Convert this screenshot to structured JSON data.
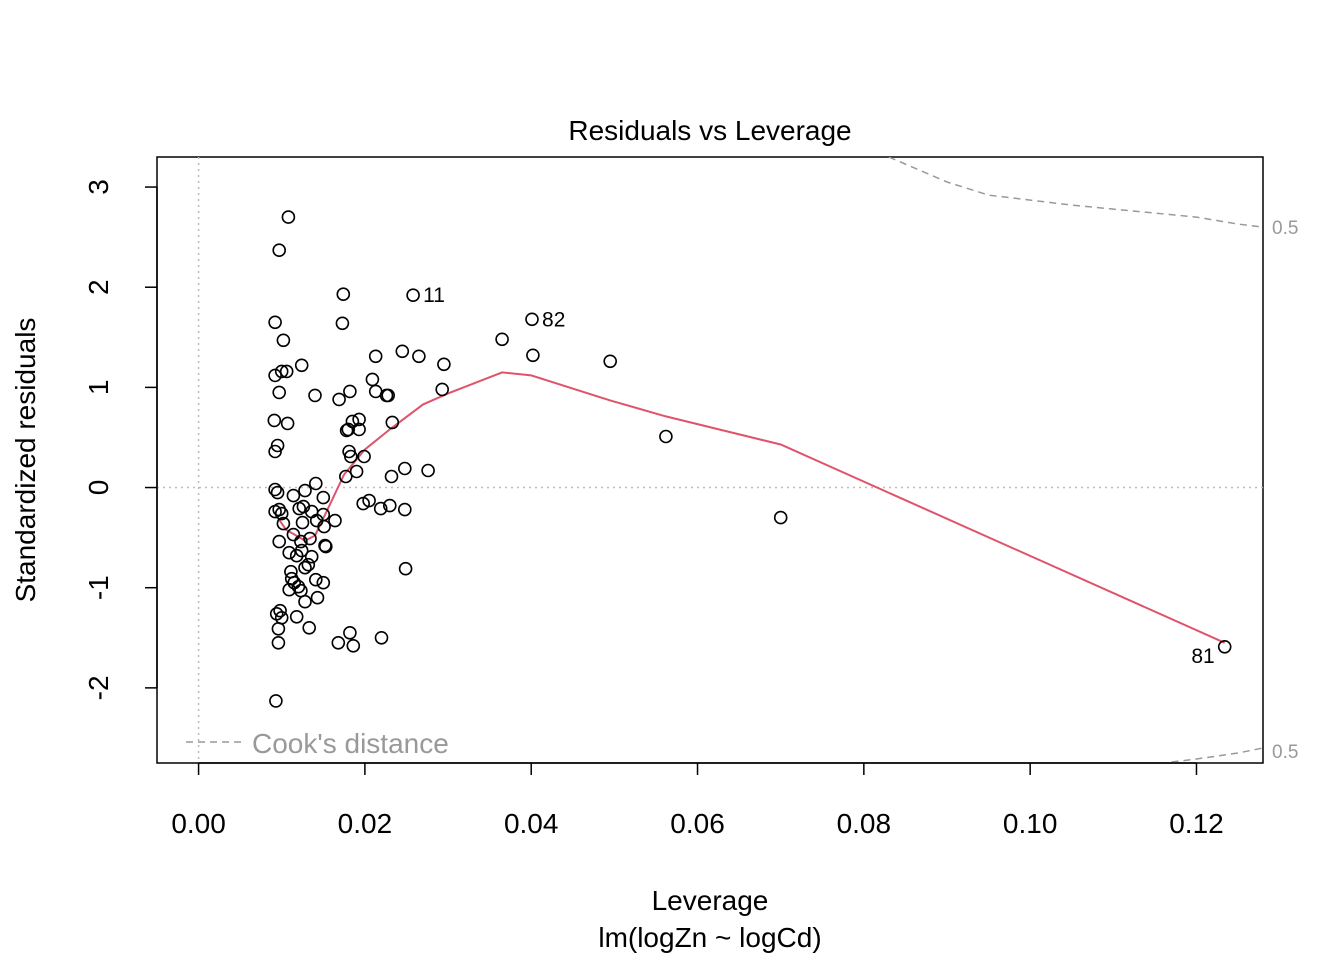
{
  "chart_data": {
    "type": "scatter",
    "title": "Residuals vs Leverage",
    "xlabel": "Leverage",
    "subtitle": "lm(logZn ~ logCd)",
    "ylabel": "Standardized residuals",
    "xlim": [
      -0.005,
      0.128
    ],
    "ylim": [
      -2.75,
      3.3
    ],
    "x_ticks": [
      0.0,
      0.02,
      0.04,
      0.06,
      0.08,
      0.1,
      0.12
    ],
    "x_tick_labels": [
      "0.00",
      "0.02",
      "0.04",
      "0.06",
      "0.08",
      "0.10",
      "0.12"
    ],
    "y_ticks": [
      -2,
      -1,
      0,
      1,
      2,
      3
    ],
    "y_tick_labels": [
      "-2",
      "-1",
      "0",
      "1",
      "2",
      "3"
    ],
    "reference_lines": {
      "h": 0,
      "v": 0
    },
    "points": [
      [
        0.0108,
        2.7
      ],
      [
        0.0097,
        2.37
      ],
      [
        0.0174,
        1.93
      ],
      [
        0.0258,
        1.92
      ],
      [
        0.0401,
        1.68
      ],
      [
        0.0092,
        1.65
      ],
      [
        0.0173,
        1.64
      ],
      [
        0.0102,
        1.47
      ],
      [
        0.0365,
        1.48
      ],
      [
        0.0245,
        1.36
      ],
      [
        0.0213,
        1.31
      ],
      [
        0.0265,
        1.31
      ],
      [
        0.0402,
        1.32
      ],
      [
        0.0495,
        1.26
      ],
      [
        0.0124,
        1.22
      ],
      [
        0.0295,
        1.23
      ],
      [
        0.0106,
        1.16
      ],
      [
        0.01,
        1.16
      ],
      [
        0.0092,
        1.12
      ],
      [
        0.0209,
        1.08
      ],
      [
        0.0097,
        0.95
      ],
      [
        0.014,
        0.92
      ],
      [
        0.0182,
        0.96
      ],
      [
        0.0213,
        0.96
      ],
      [
        0.0226,
        0.92
      ],
      [
        0.0228,
        0.92
      ],
      [
        0.0293,
        0.98
      ],
      [
        0.0169,
        0.88
      ],
      [
        0.0091,
        0.67
      ],
      [
        0.0107,
        0.64
      ],
      [
        0.0185,
        0.66
      ],
      [
        0.0193,
        0.68
      ],
      [
        0.0233,
        0.65
      ],
      [
        0.0178,
        0.57
      ],
      [
        0.018,
        0.58
      ],
      [
        0.0193,
        0.58
      ],
      [
        0.0562,
        0.51
      ],
      [
        0.0095,
        0.42
      ],
      [
        0.0092,
        0.36
      ],
      [
        0.0181,
        0.36
      ],
      [
        0.0183,
        0.31
      ],
      [
        0.0199,
        0.31
      ],
      [
        0.0248,
        0.19
      ],
      [
        0.0276,
        0.17
      ],
      [
        0.0177,
        0.11
      ],
      [
        0.019,
        0.16
      ],
      [
        0.0232,
        0.11
      ],
      [
        0.0141,
        0.04
      ],
      [
        0.0092,
        -0.02
      ],
      [
        0.0095,
        -0.05
      ],
      [
        0.0128,
        -0.03
      ],
      [
        0.0114,
        -0.08
      ],
      [
        0.015,
        -0.1
      ],
      [
        0.0198,
        -0.16
      ],
      [
        0.0205,
        -0.13
      ],
      [
        0.023,
        -0.18
      ],
      [
        0.0219,
        -0.21
      ],
      [
        0.0248,
        -0.22
      ],
      [
        0.0092,
        -0.24
      ],
      [
        0.0097,
        -0.22
      ],
      [
        0.01,
        -0.26
      ],
      [
        0.0121,
        -0.21
      ],
      [
        0.0126,
        -0.19
      ],
      [
        0.0136,
        -0.24
      ],
      [
        0.015,
        -0.27
      ],
      [
        0.07,
        -0.3
      ],
      [
        0.0102,
        -0.36
      ],
      [
        0.0125,
        -0.35
      ],
      [
        0.0142,
        -0.33
      ],
      [
        0.0164,
        -0.33
      ],
      [
        0.0151,
        -0.39
      ],
      [
        0.0114,
        -0.47
      ],
      [
        0.0134,
        -0.51
      ],
      [
        0.0097,
        -0.54
      ],
      [
        0.0123,
        -0.54
      ],
      [
        0.0152,
        -0.58
      ],
      [
        0.0153,
        -0.59
      ],
      [
        0.0109,
        -0.65
      ],
      [
        0.0124,
        -0.63
      ],
      [
        0.0118,
        -0.68
      ],
      [
        0.0136,
        -0.69
      ],
      [
        0.0132,
        -0.77
      ],
      [
        0.0128,
        -0.8
      ],
      [
        0.0111,
        -0.84
      ],
      [
        0.0249,
        -0.81
      ],
      [
        0.0112,
        -0.91
      ],
      [
        0.0115,
        -0.95
      ],
      [
        0.0141,
        -0.92
      ],
      [
        0.015,
        -0.95
      ],
      [
        0.012,
        -0.99
      ],
      [
        0.0109,
        -1.02
      ],
      [
        0.0123,
        -1.03
      ],
      [
        0.0143,
        -1.1
      ],
      [
        0.0128,
        -1.14
      ],
      [
        0.0098,
        -1.23
      ],
      [
        0.0094,
        -1.26
      ],
      [
        0.01,
        -1.3
      ],
      [
        0.0118,
        -1.29
      ],
      [
        0.0133,
        -1.4
      ],
      [
        0.0096,
        -1.41
      ],
      [
        0.0182,
        -1.45
      ],
      [
        0.022,
        -1.5
      ],
      [
        0.0096,
        -1.55
      ],
      [
        0.0168,
        -1.55
      ],
      [
        0.0186,
        -1.58
      ],
      [
        0.1234,
        -1.59
      ],
      [
        0.0093,
        -2.13
      ]
    ],
    "point_labels": [
      {
        "text": "11",
        "x": 0.0258,
        "y": 1.92,
        "side": "right"
      },
      {
        "text": "82",
        "x": 0.0401,
        "y": 1.68,
        "side": "right"
      },
      {
        "text": "81",
        "x": 0.1234,
        "y": -1.59,
        "side": "left"
      }
    ],
    "smooth_line": {
      "color": "#DF536B",
      "x": [
        0.0096,
        0.0105,
        0.0128,
        0.014,
        0.0155,
        0.0175,
        0.02,
        0.023,
        0.027,
        0.03,
        0.0365,
        0.04,
        0.0495,
        0.0562,
        0.07,
        0.1234
      ],
      "y": [
        -0.31,
        -0.42,
        -0.53,
        -0.48,
        -0.22,
        0.13,
        0.38,
        0.58,
        0.83,
        0.94,
        1.15,
        1.12,
        0.87,
        0.71,
        0.43,
        -1.55
      ]
    },
    "cooks_distance": {
      "color": "#999999",
      "level_label": "0.5",
      "upper": {
        "x": [
          0.083,
          0.09,
          0.095,
          0.1,
          0.105,
          0.11,
          0.115,
          0.12,
          0.125,
          0.128
        ],
        "y": [
          3.3,
          3.05,
          2.92,
          2.87,
          2.82,
          2.78,
          2.74,
          2.7,
          2.63,
          2.6
        ]
      },
      "lower": {
        "x": [
          0.117,
          0.12,
          0.125,
          0.128
        ],
        "y": [
          -2.74,
          -2.71,
          -2.65,
          -2.6
        ]
      }
    },
    "legend": {
      "label": "Cook's distance",
      "position": "bottom-left",
      "line_style": "dashed"
    }
  }
}
